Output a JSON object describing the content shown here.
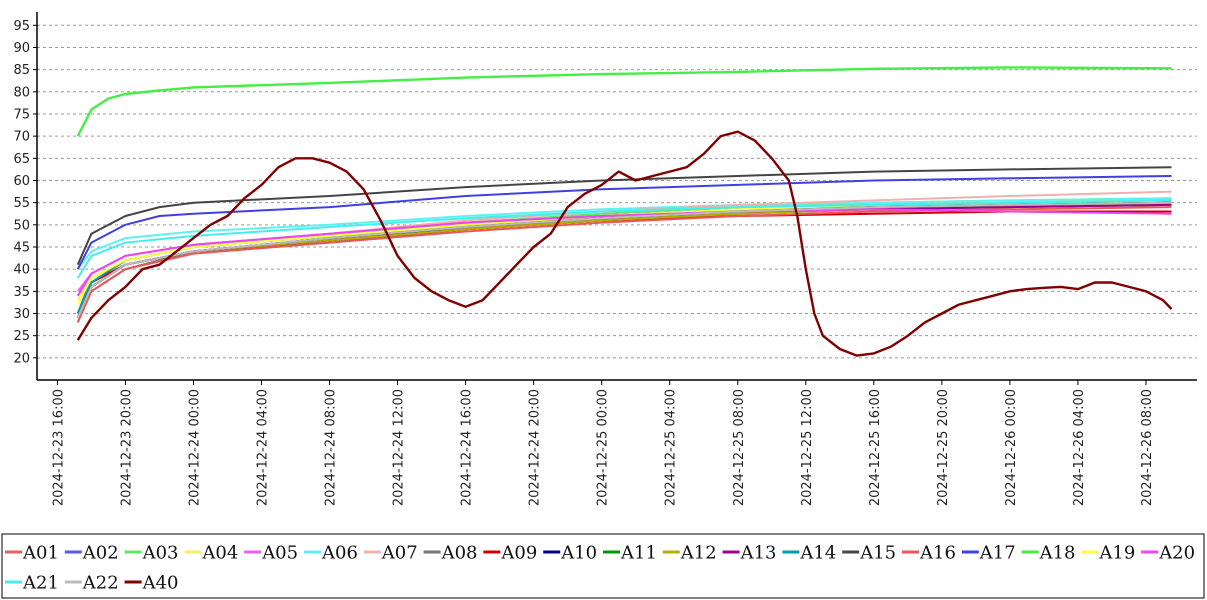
{
  "chart_data": {
    "type": "line",
    "title": "",
    "xlabel": "",
    "ylabel": "",
    "ylim": [
      15,
      98
    ],
    "grid": "horizontal-dashed",
    "legend_placement": "bottom",
    "y_ticks": [
      20,
      25,
      30,
      35,
      40,
      45,
      50,
      55,
      60,
      65,
      70,
      75,
      80,
      85,
      90,
      95
    ],
    "x_ticks": [
      {
        "t": 0,
        "label": "2024-12-23 16:00"
      },
      {
        "t": 4,
        "label": "2024-12-23 20:00"
      },
      {
        "t": 8,
        "label": "2024-12-24 00:00"
      },
      {
        "t": 12,
        "label": "2024-12-24 04:00"
      },
      {
        "t": 16,
        "label": "2024-12-24 08:00"
      },
      {
        "t": 20,
        "label": "2024-12-24 12:00"
      },
      {
        "t": 24,
        "label": "2024-12-24 16:00"
      },
      {
        "t": 28,
        "label": "2024-12-24 20:00"
      },
      {
        "t": 32,
        "label": "2024-12-25 00:00"
      },
      {
        "t": 36,
        "label": "2024-12-25 04:00"
      },
      {
        "t": 40,
        "label": "2024-12-25 08:00"
      },
      {
        "t": 44,
        "label": "2024-12-25 12:00"
      },
      {
        "t": 48,
        "label": "2024-12-25 16:00"
      },
      {
        "t": 52,
        "label": "2024-12-25 20:00"
      },
      {
        "t": 56,
        "label": "2024-12-26 00:00"
      },
      {
        "t": 60,
        "label": "2024-12-26 04:00"
      },
      {
        "t": 64,
        "label": "2024-12-26 08:00"
      }
    ],
    "xlim": [
      -1.2,
      67
    ],
    "series": [
      {
        "name": "A01",
        "color": "#e8605a",
        "x": [
          1.2,
          2,
          4,
          8,
          16,
          24,
          32,
          40,
          48,
          56,
          65.5
        ],
        "y": [
          28,
          36,
          41,
          44,
          46.5,
          49,
          51,
          52.5,
          53.5,
          54,
          54.5
        ]
      },
      {
        "name": "A02",
        "color": "#5a5ae8",
        "x": [
          1.2,
          2,
          4,
          8,
          16,
          24,
          32,
          40,
          48,
          56,
          65.5
        ],
        "y": [
          30,
          38,
          42,
          45,
          47.5,
          50,
          52,
          53,
          54,
          54.5,
          55
        ]
      },
      {
        "name": "A03",
        "color": "#60e860",
        "x": [
          1.2,
          2,
          4,
          8,
          16,
          24,
          32,
          40,
          48,
          56,
          65.5
        ],
        "y": [
          29,
          37,
          42,
          45,
          48,
          50.5,
          52.5,
          54,
          55,
          55.5,
          56
        ]
      },
      {
        "name": "A04",
        "color": "#f0f060",
        "x": [
          1.2,
          2,
          4,
          8,
          16,
          24,
          32,
          40,
          48,
          56,
          65.5
        ],
        "y": [
          33,
          38,
          42,
          45,
          47.5,
          50,
          52,
          53.5,
          54.5,
          55,
          55.5
        ]
      },
      {
        "name": "A05",
        "color": "#e860e8",
        "x": [
          1.2,
          2,
          4,
          8,
          16,
          24,
          32,
          40,
          48,
          56,
          65.5
        ],
        "y": [
          35,
          39,
          43,
          45.5,
          48,
          50.5,
          52,
          53.5,
          54,
          54.5,
          55
        ]
      },
      {
        "name": "A06",
        "color": "#60f0f0",
        "x": [
          1.2,
          2,
          4,
          8,
          16,
          24,
          32,
          40,
          48,
          56,
          65.5
        ],
        "y": [
          40,
          44,
          47,
          48.5,
          50,
          52,
          53.5,
          54.5,
          55,
          55.5,
          56
        ]
      },
      {
        "name": "A07",
        "color": "#f0b0b0",
        "x": [
          1.2,
          2,
          4,
          8,
          16,
          24,
          32,
          40,
          48,
          56,
          65.5
        ],
        "y": [
          30,
          37,
          42,
          45,
          48,
          51,
          53,
          54.5,
          55.5,
          56.5,
          57.5
        ]
      },
      {
        "name": "A08",
        "color": "#777777",
        "x": [
          1.2,
          2,
          4,
          8,
          16,
          24,
          32,
          40,
          48,
          56,
          65.5
        ],
        "y": [
          29,
          35,
          40,
          44,
          46,
          49,
          51,
          52.5,
          53.5,
          54,
          54.5
        ]
      },
      {
        "name": "A09",
        "color": "#cc0000",
        "x": [
          1.2,
          2,
          4,
          8,
          16,
          24,
          32,
          40,
          48,
          56,
          65.5
        ],
        "y": [
          30,
          37,
          41,
          44,
          46.5,
          49,
          51,
          52,
          52.5,
          53,
          53
        ]
      },
      {
        "name": "A10",
        "color": "#00008b",
        "x": [
          1.2,
          2,
          4,
          8,
          16,
          24,
          32,
          40,
          48,
          56,
          65.5
        ],
        "y": [
          29,
          36,
          41,
          44,
          46.5,
          49.5,
          51.5,
          53,
          54,
          54.5,
          55
        ]
      },
      {
        "name": "A11",
        "color": "#009900",
        "x": [
          1.2,
          2,
          4,
          8,
          16,
          24,
          32,
          40,
          48,
          56,
          65.5
        ],
        "y": [
          29,
          36,
          41,
          44,
          47,
          49.5,
          51.5,
          53,
          54,
          54.5,
          55
        ]
      },
      {
        "name": "A12",
        "color": "#b0b000",
        "x": [
          1.2,
          2,
          4,
          8,
          16,
          24,
          32,
          40,
          48,
          56,
          65.5
        ],
        "y": [
          29,
          36,
          41,
          44,
          46.5,
          49,
          51,
          52.5,
          53.5,
          54,
          54.5
        ]
      },
      {
        "name": "A13",
        "color": "#990099",
        "x": [
          1.2,
          2,
          4,
          8,
          16,
          24,
          32,
          40,
          48,
          56,
          65.5
        ],
        "y": [
          29,
          36,
          41,
          44,
          47,
          49.5,
          51.5,
          53,
          53.5,
          54,
          54.5
        ]
      },
      {
        "name": "A14",
        "color": "#00a0a0",
        "x": [
          1.2,
          2,
          4,
          8,
          16,
          24,
          32,
          40,
          48,
          56,
          65.5
        ],
        "y": [
          30,
          37,
          42,
          45,
          47.5,
          50,
          52,
          53.5,
          54.5,
          55,
          55.5
        ]
      },
      {
        "name": "A15",
        "color": "#444444",
        "x": [
          1.2,
          2,
          4,
          6,
          8,
          16,
          24,
          32,
          40,
          48,
          56,
          65.5
        ],
        "y": [
          41,
          48,
          52,
          54,
          55,
          56.5,
          58.5,
          60,
          61,
          62,
          62.5,
          63
        ]
      },
      {
        "name": "A16",
        "color": "#ee5555",
        "x": [
          1.2,
          2,
          4,
          8,
          16,
          24,
          32,
          40,
          48,
          56,
          65.5
        ],
        "y": [
          28,
          35,
          40,
          43.5,
          46,
          48.5,
          50.5,
          52,
          53,
          53.5,
          54
        ]
      },
      {
        "name": "A17",
        "color": "#4040e0",
        "x": [
          1.2,
          2,
          4,
          6,
          8,
          16,
          24,
          32,
          40,
          48,
          56,
          65.5
        ],
        "y": [
          40,
          46,
          50,
          52,
          52.5,
          54,
          56.5,
          58,
          59,
          60,
          60.5,
          61
        ]
      },
      {
        "name": "A18",
        "color": "#44ee44",
        "x": [
          1.2,
          2,
          3,
          4,
          6,
          8,
          16,
          24,
          32,
          40,
          48,
          56,
          65.5
        ],
        "y": [
          70,
          76,
          78.5,
          79.5,
          80.3,
          81,
          82,
          83.2,
          84,
          84.5,
          85.2,
          85.5,
          85.3
        ]
      },
      {
        "name": "A19",
        "color": "#ffff44",
        "x": [
          1.2,
          2,
          4,
          8,
          16,
          24,
          32,
          40,
          48,
          56,
          65.5
        ],
        "y": [
          32,
          38,
          42,
          45,
          47.5,
          50,
          52,
          53.5,
          54.5,
          55,
          55.5
        ]
      },
      {
        "name": "A20",
        "color": "#ee44ee",
        "x": [
          1.2,
          2,
          4,
          8,
          16,
          24,
          32,
          40,
          48,
          56,
          65.5
        ],
        "y": [
          34,
          39,
          43,
          45.5,
          48,
          50.5,
          52,
          53,
          53.5,
          53,
          52.5
        ]
      },
      {
        "name": "A21",
        "color": "#44eeee",
        "x": [
          1.2,
          2,
          4,
          8,
          16,
          24,
          32,
          40,
          48,
          56,
          65.5
        ],
        "y": [
          38,
          43,
          46,
          47.5,
          49.5,
          51.5,
          53,
          54,
          54.5,
          55,
          55.5
        ]
      },
      {
        "name": "A22",
        "color": "#bbbbbb",
        "x": [
          1.2,
          2,
          4,
          8,
          16,
          24,
          32,
          40,
          48,
          56,
          65.5
        ],
        "y": [
          29,
          36,
          41,
          44,
          47,
          49.5,
          51.5,
          53,
          54,
          54.5,
          55
        ]
      },
      {
        "name": "A40",
        "color": "#800000",
        "x": [
          1.2,
          2,
          3,
          4,
          5,
          6,
          7,
          8,
          9,
          10,
          11,
          12,
          13,
          14,
          15,
          16,
          17,
          18,
          19,
          20,
          21,
          22,
          23,
          24,
          25,
          26,
          27,
          28,
          29,
          30,
          31,
          32,
          33,
          34,
          35,
          36,
          37,
          38,
          39,
          40,
          41,
          42,
          43,
          43.5,
          44,
          44.5,
          45,
          46,
          47,
          48,
          49,
          50,
          51,
          52,
          53,
          54,
          55,
          56,
          57,
          58,
          59,
          60,
          61,
          62,
          63,
          64,
          65,
          65.5
        ],
        "y": [
          24,
          29,
          33,
          36,
          40,
          41,
          44,
          47,
          50,
          52,
          56,
          59,
          63,
          65,
          65,
          64,
          62,
          58,
          51,
          43,
          38,
          35,
          33,
          31.5,
          33,
          37,
          41,
          45,
          48,
          54,
          57,
          59,
          62,
          60,
          61,
          62,
          63,
          66,
          70,
          71,
          69,
          65,
          60,
          52,
          40,
          30,
          25,
          22,
          20.5,
          21,
          22.5,
          25,
          28,
          30,
          32,
          33,
          34,
          35,
          35.5,
          35.8,
          36,
          35.5,
          37,
          37,
          36,
          35,
          33,
          31
        ]
      }
    ]
  }
}
